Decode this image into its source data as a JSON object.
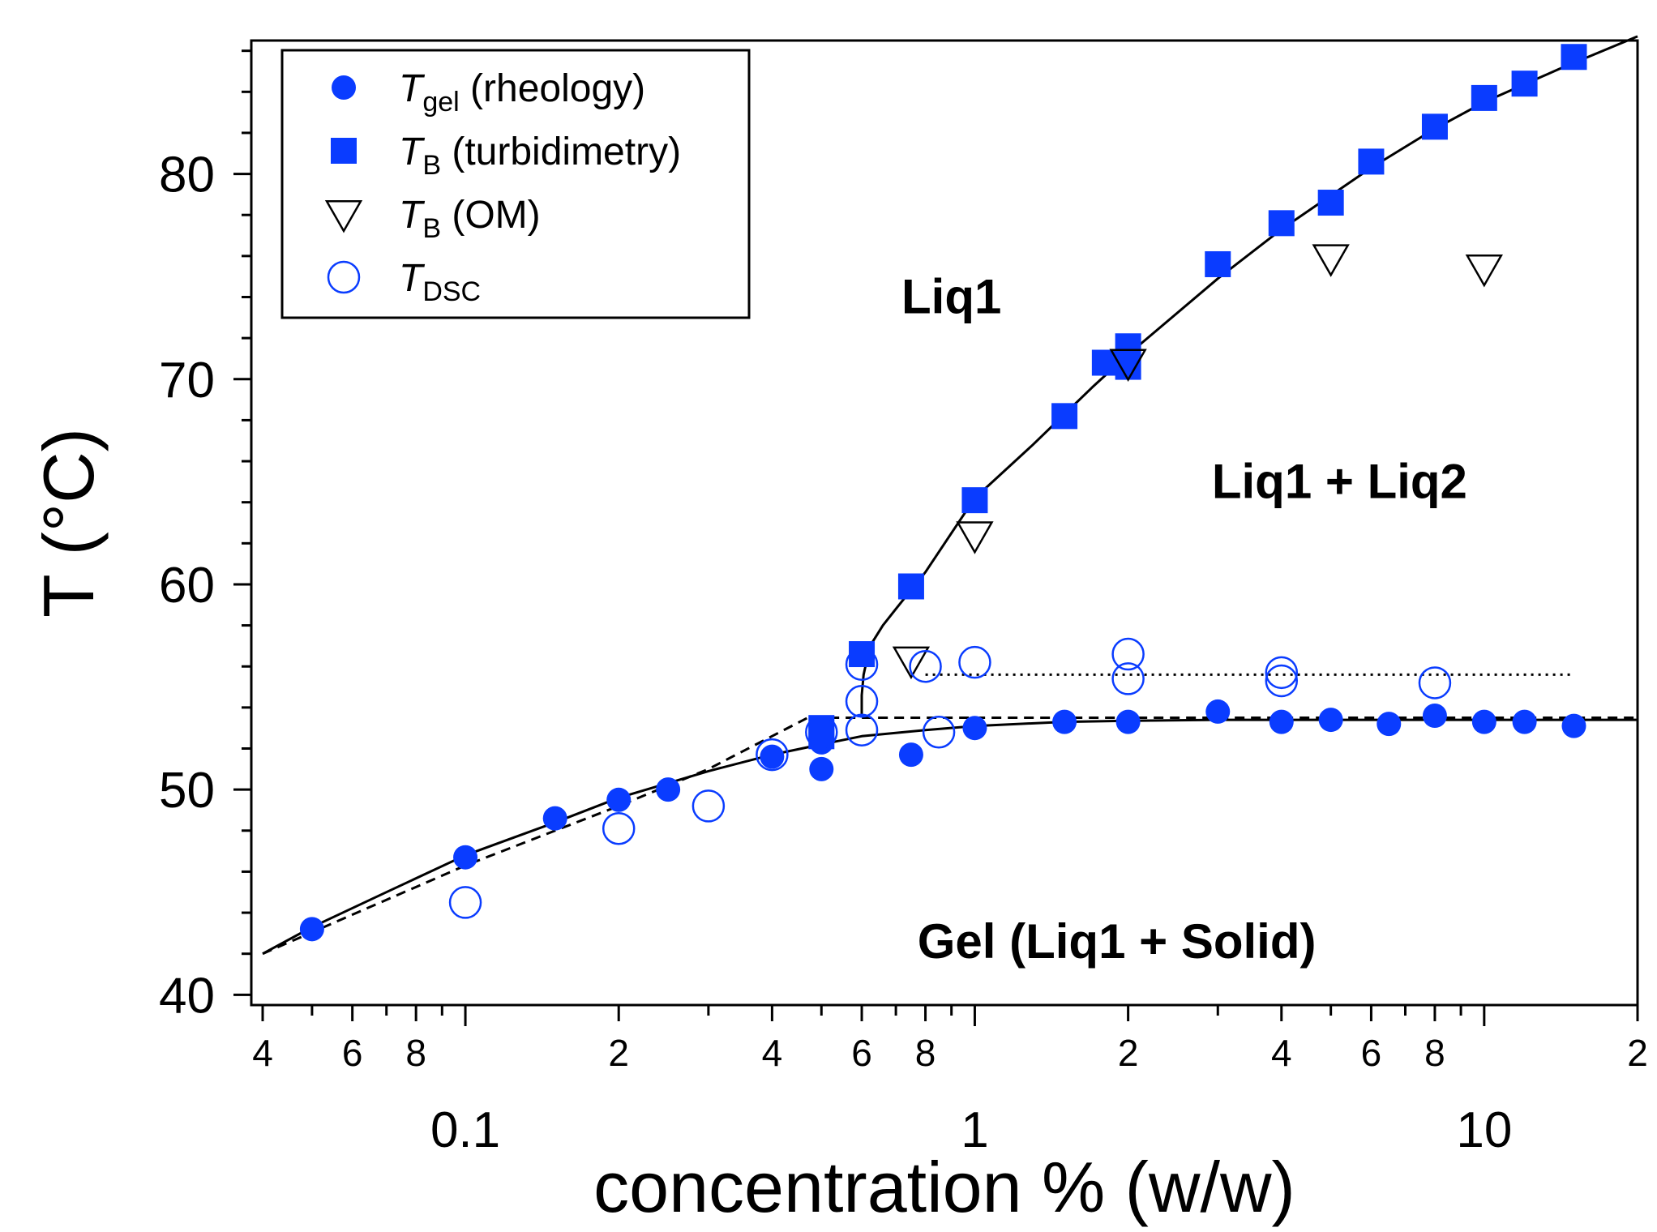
{
  "chart_data": {
    "type": "scatter",
    "xscale": "log",
    "xlim": [
      0.038,
      20
    ],
    "ylim": [
      39.5,
      86.5
    ],
    "xlabel": "concentration % (w/w)",
    "ylabel": "T (°C)",
    "x_decade_labels": [
      {
        "value": 0.1,
        "label": "0.1"
      },
      {
        "value": 1,
        "label": "1"
      },
      {
        "value": 10,
        "label": "10"
      }
    ],
    "x_minor_labels": [
      {
        "value": 0.04,
        "label": "4"
      },
      {
        "value": 0.06,
        "label": "6"
      },
      {
        "value": 0.08,
        "label": "8"
      },
      {
        "value": 0.2,
        "label": "2"
      },
      {
        "value": 0.4,
        "label": "4"
      },
      {
        "value": 0.6,
        "label": "6"
      },
      {
        "value": 0.8,
        "label": "8"
      },
      {
        "value": 2,
        "label": "2"
      },
      {
        "value": 4,
        "label": "4"
      },
      {
        "value": 6,
        "label": "6"
      },
      {
        "value": 8,
        "label": "8"
      },
      {
        "value": 20,
        "label": "2"
      }
    ],
    "y_ticks": [
      {
        "value": 40,
        "label": "40"
      },
      {
        "value": 50,
        "label": "50"
      },
      {
        "value": 60,
        "label": "60"
      },
      {
        "value": 70,
        "label": "70"
      },
      {
        "value": 80,
        "label": "80"
      }
    ],
    "legend": {
      "placement": "top-left",
      "entries": [
        {
          "symbol": "filled-circle",
          "main": "T",
          "sub": "gel",
          "rest": " (rheology)"
        },
        {
          "symbol": "filled-square",
          "main": "T",
          "sub": "B",
          "rest": " (turbidimetry)"
        },
        {
          "symbol": "open-triangle-down",
          "main": "T",
          "sub": "B",
          "rest": " (OM)"
        },
        {
          "symbol": "open-circle",
          "main": "T",
          "sub": "DSC",
          "rest": ""
        }
      ]
    },
    "annotations": [
      {
        "text": "Liq1",
        "x": 0.9,
        "y": 73.2
      },
      {
        "text": "Liq1 + Liq2",
        "x": 5.2,
        "y": 64.2
      },
      {
        "text": "Gel (Liq1 + Solid)",
        "x": 1.9,
        "y": 41.8
      }
    ],
    "colors": {
      "blue": "#0a3cff",
      "black": "#000000"
    },
    "series": [
      {
        "name": "T_gel (rheology)",
        "marker": "filled-circle",
        "x": [
          0.05,
          0.1,
          0.15,
          0.2,
          0.25,
          0.4,
          0.5,
          0.5,
          0.75,
          1,
          1.5,
          2,
          3,
          4,
          5,
          6.5,
          8,
          10,
          12,
          15
        ],
        "y": [
          43.2,
          46.7,
          48.6,
          49.5,
          50.0,
          51.6,
          51.0,
          52.3,
          51.7,
          53.0,
          53.3,
          53.3,
          53.8,
          53.3,
          53.4,
          53.2,
          53.6,
          53.3,
          53.3,
          53.1
        ]
      },
      {
        "name": "T_B (turbidimetry)",
        "marker": "filled-square",
        "x": [
          0.5,
          0.5,
          0.6,
          0.75,
          1,
          1.5,
          1.8,
          2,
          2,
          3,
          4,
          5,
          6,
          8,
          10,
          12,
          15
        ],
        "y": [
          52.6,
          53.0,
          56.6,
          59.9,
          64.1,
          68.2,
          70.8,
          70.6,
          71.6,
          75.6,
          77.6,
          78.6,
          80.6,
          82.3,
          83.7,
          84.4,
          85.7
        ]
      },
      {
        "name": "T_B (OM)",
        "marker": "open-triangle-down",
        "x": [
          0.75,
          1,
          2,
          5,
          10
        ],
        "y": [
          56.3,
          62.4,
          70.8,
          75.9,
          75.4
        ]
      },
      {
        "name": "T_DSC",
        "marker": "open-circle",
        "x": [
          0.1,
          0.2,
          0.3,
          0.4,
          0.5,
          0.6,
          0.6,
          0.6,
          0.8,
          0.85,
          1,
          2,
          2,
          4,
          4,
          8
        ],
        "y": [
          44.5,
          48.1,
          49.2,
          51.7,
          52.8,
          56.1,
          54.3,
          52.9,
          56.0,
          52.8,
          56.2,
          56.6,
          55.4,
          55.7,
          55.3,
          55.2
        ]
      }
    ],
    "fit_lines": [
      {
        "name": "liquidus (solid)",
        "style": "solid",
        "x": [
          0.04,
          0.05,
          0.07,
          0.1,
          0.15,
          0.2,
          0.3,
          0.4,
          0.5,
          0.6,
          0.8,
          1,
          1.5,
          2,
          3,
          5,
          8,
          12,
          20
        ],
        "y": [
          42.0,
          43.3,
          45.0,
          46.8,
          48.4,
          49.6,
          50.9,
          51.7,
          52.2,
          52.6,
          52.9,
          53.1,
          53.3,
          53.35,
          53.4,
          53.4,
          53.4,
          53.4,
          53.4
        ]
      },
      {
        "name": "binodal",
        "style": "solid",
        "x": [
          0.6,
          0.6,
          0.605,
          0.615,
          0.63,
          0.66,
          0.7,
          0.8,
          1,
          1.3,
          1.7,
          2,
          3,
          4,
          6,
          8,
          10,
          14,
          20
        ],
        "y": [
          53.5,
          54.6,
          55.6,
          56.4,
          57.2,
          58.0,
          58.8,
          60.6,
          64.2,
          66.8,
          69.6,
          71.2,
          74.9,
          77.3,
          80.3,
          82.2,
          83.5,
          85.1,
          86.7
        ]
      },
      {
        "name": "ideal solubility (dashed)",
        "style": "dashed",
        "x": [
          0.04,
          0.1,
          0.2,
          0.3,
          0.47,
          1,
          20
        ],
        "y": [
          42.0,
          46.3,
          49.2,
          51.0,
          53.5,
          53.5,
          53.5
        ]
      },
      {
        "name": "monotectic (dotted)",
        "style": "dotted",
        "x": [
          0.8,
          15
        ],
        "y": [
          55.6,
          55.6
        ]
      }
    ]
  }
}
